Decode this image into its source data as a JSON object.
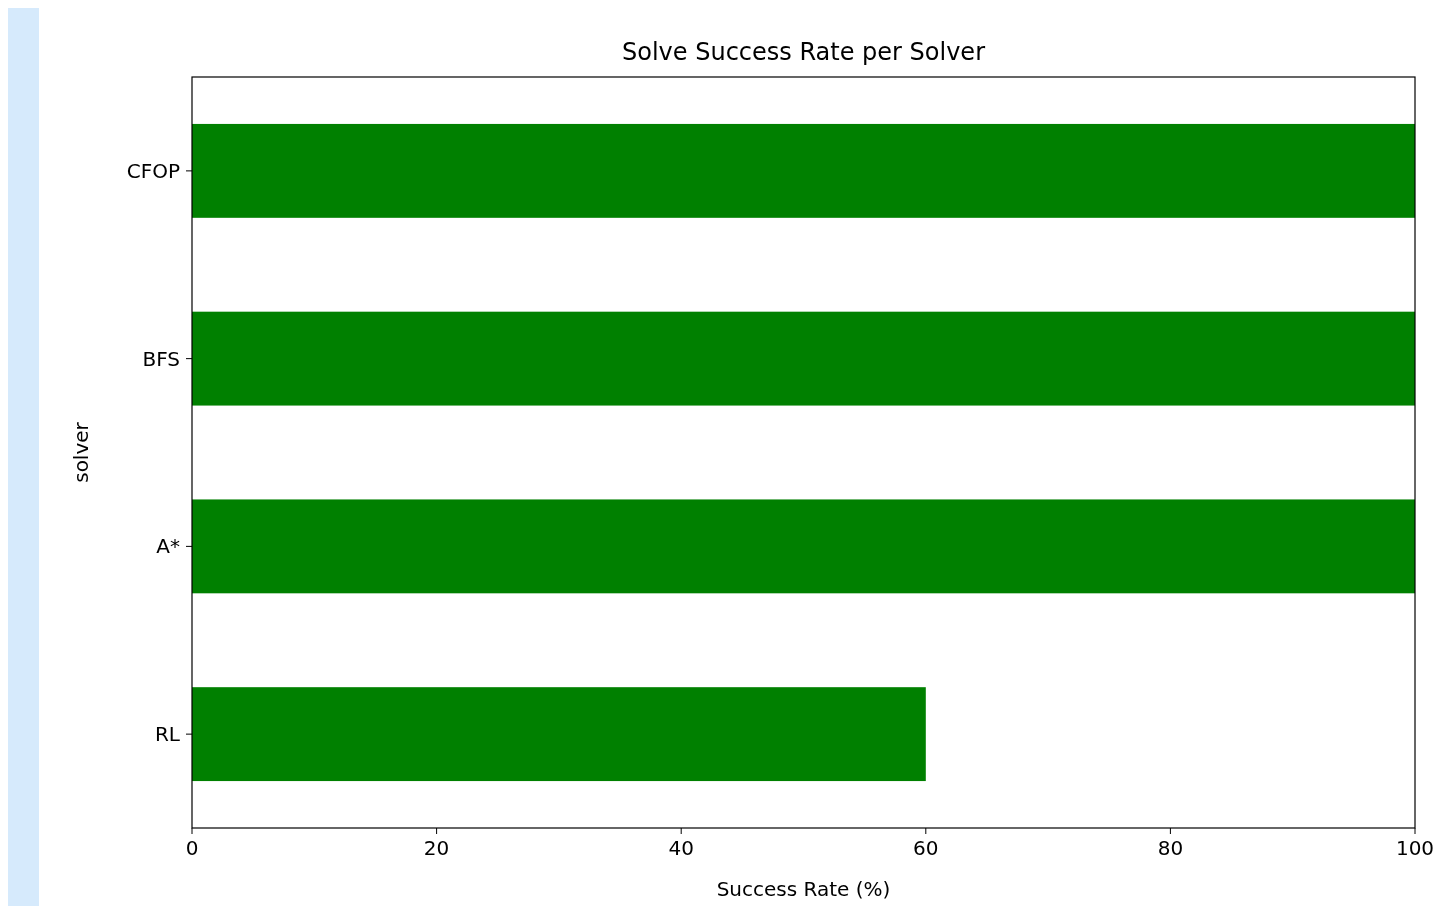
{
  "chart_data": {
    "type": "bar",
    "orientation": "horizontal",
    "title": "Solve Success Rate per Solver",
    "xlabel": "Success Rate (%)",
    "ylabel": "solver",
    "categories": [
      "CFOP",
      "BFS",
      "A*",
      "RL"
    ],
    "values": [
      100,
      100,
      100,
      60
    ],
    "color": "#008000",
    "xlim": [
      0,
      100
    ],
    "xticks": [
      0,
      20,
      40,
      60,
      80,
      100
    ],
    "grid": false
  }
}
